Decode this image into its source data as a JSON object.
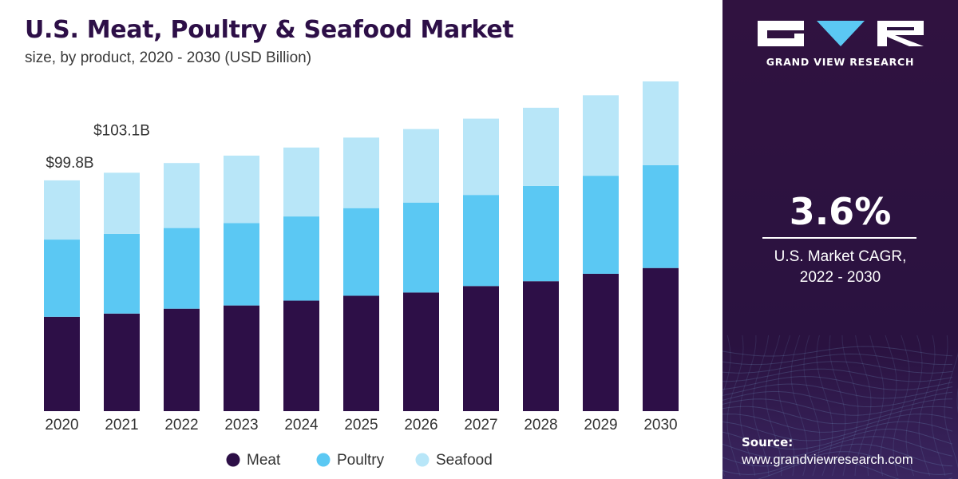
{
  "header": {
    "title": "U.S. Meat, Poultry & Seafood Market",
    "subtitle": "size, by product, 2020 - 2030 (USD Billion)"
  },
  "sidebar": {
    "brand": "GRAND VIEW RESEARCH",
    "cagr_value": "3.6%",
    "cagr_label_line1": "U.S. Market CAGR,",
    "cagr_label_line2": "2022 - 2030",
    "source_label": "Source:",
    "source_url": "www.grandviewresearch.com"
  },
  "colors": {
    "title": "#2d0f47",
    "sidebar_bg": "#2b1240",
    "meat": "#2d0f47",
    "poultry": "#5bc8f3",
    "seafood": "#b8e6f8"
  },
  "chart_data": {
    "type": "bar",
    "stacked": true,
    "title": "U.S. Meat, Poultry & Seafood Market",
    "subtitle": "size, by product, 2020 - 2030 (USD Billion)",
    "categories": [
      "2020",
      "2021",
      "2022",
      "2023",
      "2024",
      "2025",
      "2026",
      "2027",
      "2028",
      "2029",
      "2030"
    ],
    "series": [
      {
        "name": "Meat",
        "color": "#2d0f47",
        "values": [
          40.8,
          42.2,
          44.3,
          45.7,
          47.8,
          49.9,
          51.3,
          54.1,
          56.2,
          59.4,
          61.9
        ]
      },
      {
        "name": "Poultry",
        "color": "#5bc8f3",
        "values": [
          33.4,
          34.5,
          34.9,
          35.6,
          36.4,
          37.9,
          38.9,
          39.4,
          41.2,
          42.4,
          44.5
        ]
      },
      {
        "name": "Seafood",
        "color": "#b8e6f8",
        "values": [
          25.6,
          26.4,
          28.1,
          29.2,
          29.8,
          30.5,
          31.8,
          33.0,
          33.8,
          34.8,
          36.2
        ]
      }
    ],
    "annotations": [
      {
        "category": "2020",
        "text": "$99.8B"
      },
      {
        "category": "2021",
        "text": "$103.1B"
      }
    ],
    "legend": {
      "position": "bottom",
      "items": [
        "Meat",
        "Poultry",
        "Seafood"
      ]
    },
    "ylim": [
      0,
      145
    ],
    "grid": false,
    "xlabel": "",
    "ylabel": ""
  }
}
